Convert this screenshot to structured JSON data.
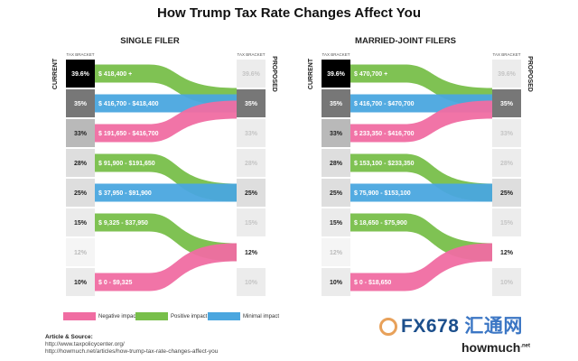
{
  "title": "How Trump Tax Rate Changes Affect You",
  "axis": {
    "current": "CURRENT",
    "proposed": "PROPOSED",
    "bracket": "TAX BRACKET"
  },
  "colors": {
    "negative": "#f06da2",
    "positive": "#78bf4a",
    "minimal": "#4aa6df"
  },
  "legend": [
    {
      "label": "Negative impact",
      "color": "#f06da2"
    },
    {
      "label": "Positive impact",
      "color": "#78bf4a"
    },
    {
      "label": "Minimal impact",
      "color": "#4aa6df"
    }
  ],
  "panels": [
    {
      "title": "SINGLE FILER",
      "current": [
        "39.6%",
        "35%",
        "33%",
        "28%",
        "25%",
        "15%",
        "12%",
        "10%"
      ],
      "proposed": [
        "39.6%",
        "35%",
        "33%",
        "28%",
        "25%",
        "15%",
        "12%",
        "10%"
      ],
      "current_fill": [
        "#000000",
        "#777777",
        "#b9b9b9",
        "#dedede",
        "#dedede",
        "#ebebeb",
        "#f5f5f5",
        "#ebebeb"
      ],
      "current_text": [
        "#ffffff",
        "#ffffff",
        "#222222",
        "#222222",
        "#222222",
        "#222222",
        "#bbbbbb",
        "#222222"
      ],
      "proposed_fill": [
        "#ececec",
        "#777777",
        "#ececec",
        "#ececec",
        "#dedede",
        "#ececec",
        "#ffffff",
        "#ececec"
      ],
      "proposed_text": [
        "#c4c4c4",
        "#ffffff",
        "#c4c4c4",
        "#c4c4c4",
        "#222222",
        "#c4c4c4",
        "#222222",
        "#c4c4c4"
      ],
      "flows": [
        {
          "from": 0,
          "to": 1,
          "impact": "positive",
          "label": "$ 418,400 +"
        },
        {
          "from": 1,
          "to": 1,
          "impact": "minimal",
          "label": "$ 416,700 - $418,400"
        },
        {
          "from": 2,
          "to": 1,
          "impact": "negative",
          "label": "$ 191,650 - $416,700"
        },
        {
          "from": 3,
          "to": 4,
          "impact": "positive",
          "label": "$ 91,900 - $191,650"
        },
        {
          "from": 4,
          "to": 4,
          "impact": "minimal",
          "label": "$ 37,950 - $91,900"
        },
        {
          "from": 5,
          "to": 6,
          "impact": "positive",
          "label": "$ 9,325 - $37,950"
        },
        {
          "from": 7,
          "to": 6,
          "impact": "negative",
          "label": "$ 0 - $9,325"
        }
      ]
    },
    {
      "title": "MARRIED-JOINT FILERS",
      "current": [
        "39.6%",
        "35%",
        "33%",
        "28%",
        "25%",
        "15%",
        "12%",
        "10%"
      ],
      "proposed": [
        "39.6%",
        "35%",
        "33%",
        "28%",
        "25%",
        "15%",
        "12%",
        "10%"
      ],
      "current_fill": [
        "#000000",
        "#777777",
        "#b9b9b9",
        "#dedede",
        "#dedede",
        "#ebebeb",
        "#f5f5f5",
        "#ebebeb"
      ],
      "current_text": [
        "#ffffff",
        "#ffffff",
        "#222222",
        "#222222",
        "#222222",
        "#222222",
        "#bbbbbb",
        "#222222"
      ],
      "proposed_fill": [
        "#ececec",
        "#777777",
        "#ececec",
        "#ececec",
        "#dedede",
        "#ececec",
        "#ffffff",
        "#ececec"
      ],
      "proposed_text": [
        "#c4c4c4",
        "#ffffff",
        "#c4c4c4",
        "#c4c4c4",
        "#222222",
        "#c4c4c4",
        "#222222",
        "#c4c4c4"
      ],
      "flows": [
        {
          "from": 0,
          "to": 1,
          "impact": "positive",
          "label": "$ 470,700 +"
        },
        {
          "from": 1,
          "to": 1,
          "impact": "minimal",
          "label": "$ 416,700 - $470,700"
        },
        {
          "from": 2,
          "to": 1,
          "impact": "negative",
          "label": "$ 233,350 - $416,700"
        },
        {
          "from": 3,
          "to": 4,
          "impact": "positive",
          "label": "$ 153,100 - $233,350"
        },
        {
          "from": 4,
          "to": 4,
          "impact": "minimal",
          "label": "$ 75,900 - $153,100"
        },
        {
          "from": 5,
          "to": 6,
          "impact": "positive",
          "label": "$ 18,650 - $75,900"
        },
        {
          "from": 7,
          "to": 6,
          "impact": "negative",
          "label": "$ 0 - $18,650"
        }
      ]
    }
  ],
  "source": {
    "heading": "Article & Source:",
    "lines": [
      "http://www.taxpolicycenter.org/",
      "http://howmuch.net/articles/how-trump-tax-rate-changes-affect-you"
    ]
  },
  "watermark": {
    "fx": "FX678",
    "cn": "汇通网",
    "brand": "howmuch",
    "brand_sup": ".net"
  }
}
